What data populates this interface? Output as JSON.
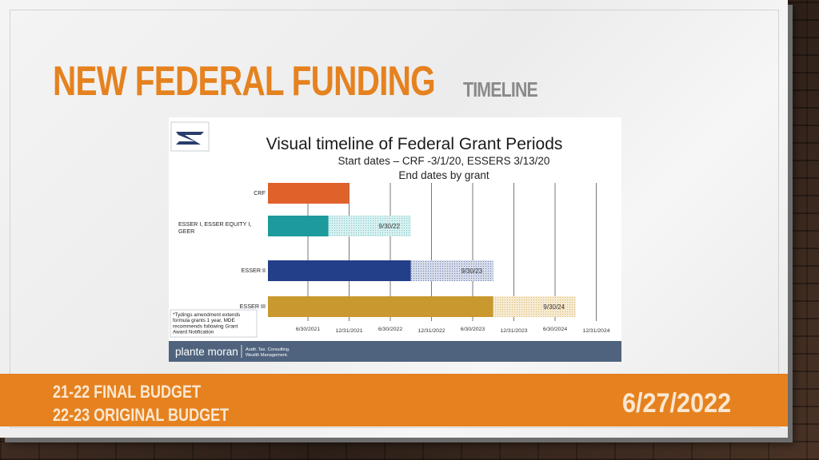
{
  "slide": {
    "title_main": "NEW FEDERAL FUNDING",
    "title_sub": "TIMELINE",
    "footer_line1": "21-22 FINAL BUDGET",
    "footer_line2": "22-23 ORIGINAL BUDGET",
    "footer_date": "6/27/2022"
  },
  "brand": {
    "name": "plante moran",
    "tagline_line1": "Audit. Tax. Consulting.",
    "tagline_line2": "Wealth Management."
  },
  "colors": {
    "accent_orange": "#e5821f",
    "crf": "#e0622b",
    "esser1": "#1d9a9c",
    "esser2": "#233f8a",
    "esser3": "#c9982f",
    "footer_bar": "#4f637e"
  },
  "chart_data": {
    "type": "bar",
    "title": "Visual timeline of Federal Grant Periods",
    "subtitle_line1": "Start dates – CRF -3/1/20, ESSERS 3/13/20",
    "subtitle_line2": "End dates by grant",
    "note": "*Tydings amendment extends formula grants 1 year, MDE recommends following Grant Award Notification",
    "x_ticks": [
      "6/30/2021",
      "12/31/2021",
      "6/30/2022",
      "12/31/2022",
      "6/30/2023",
      "12/31/2023",
      "6/30/2024",
      "12/31/2024"
    ],
    "series": [
      {
        "name": "CRF",
        "solid_end": "12/31/2021",
        "extension_end": null,
        "extension_label": ""
      },
      {
        "name": "ESSER I, ESSER EQUITY I, GEER",
        "solid_end": "9/30/2021",
        "extension_end": "9/30/2022",
        "extension_label": "9/30/22"
      },
      {
        "name": "ESSER II",
        "solid_end": "9/30/2022",
        "extension_end": "9/30/2023",
        "extension_label": "9/30/23"
      },
      {
        "name": "ESSER III",
        "solid_end": "9/30/2023",
        "extension_end": "9/30/2024",
        "extension_label": "9/30/24"
      }
    ]
  }
}
